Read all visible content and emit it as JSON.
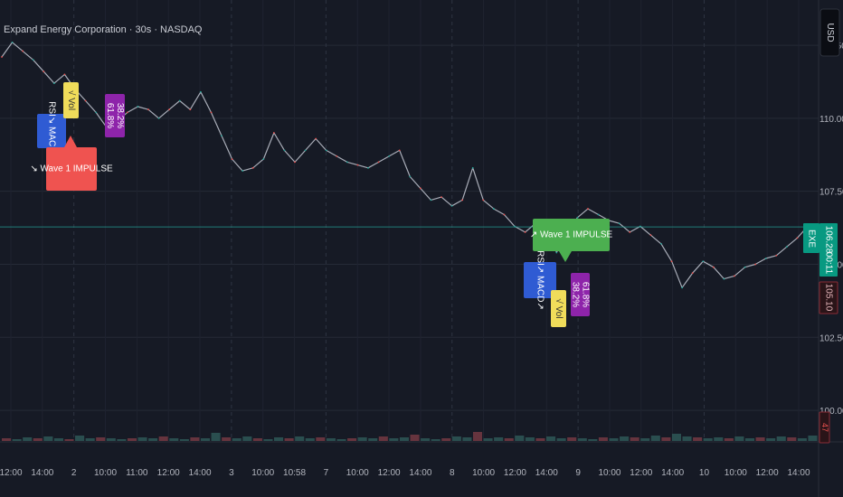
{
  "header": {
    "title": "Expand Energy Corporation · 30s · NASDAQ",
    "currency_button": "USD"
  },
  "chart_data": {
    "type": "line",
    "symbol": "EXE",
    "current_price": "106.28",
    "countdown": "00:11",
    "secondary_price": "105.10",
    "volume_badge": "47",
    "volume_label": "",
    "y_axis": {
      "ticks": [
        100.0,
        102.5,
        105.0,
        107.5,
        110.0,
        112.5
      ],
      "tick_labels": [
        "100.00",
        "102.50",
        "105.00",
        "107.50",
        "110.00",
        "112.50"
      ],
      "ylim": [
        98.95,
        114.05
      ]
    },
    "x_axis": {
      "tick_labels": [
        "12:00",
        "14:00",
        "2",
        "10:00",
        "11:00",
        "12:00",
        "14:00",
        "3",
        "10:00",
        "10:58",
        "7",
        "10:00",
        "12:00",
        "14:00",
        "8",
        "10:00",
        "12:00",
        "14:00",
        "9",
        "10:00",
        "12:00",
        "14:00",
        "10",
        "10:00",
        "12:00",
        "14:00"
      ],
      "day_separators": [
        "2",
        "3",
        "7",
        "8",
        "9",
        "10"
      ]
    },
    "series": [
      {
        "name": "EXE",
        "color": "#a9adb8",
        "values": [
          112.1,
          112.6,
          112.3,
          112.0,
          111.6,
          111.2,
          111.5,
          111.0,
          110.6,
          110.2,
          109.7,
          109.9,
          110.2,
          110.4,
          110.3,
          110.0,
          110.3,
          110.6,
          110.3,
          110.9,
          110.2,
          109.4,
          108.6,
          108.2,
          108.3,
          108.6,
          109.5,
          108.9,
          108.5,
          108.9,
          109.3,
          108.9,
          108.7,
          108.5,
          108.4,
          108.3,
          108.5,
          108.7,
          108.9,
          108.0,
          107.6,
          107.2,
          107.3,
          107.0,
          107.2,
          108.3,
          107.2,
          106.9,
          106.7,
          106.3,
          106.1,
          106.4,
          106.5,
          105.4,
          106.1,
          106.6,
          106.9,
          106.7,
          106.5,
          106.4,
          106.1,
          106.3,
          106.0,
          105.7,
          105.1,
          104.2,
          104.7,
          105.1,
          104.9,
          104.5,
          104.6,
          104.9,
          105.0,
          105.2,
          105.3,
          105.6,
          105.9,
          106.3
        ]
      }
    ],
    "reference_line": {
      "value": 106.28,
      "color": "#26a69a"
    },
    "volume": {
      "values": [
        3,
        2,
        4,
        3,
        5,
        3,
        2,
        6,
        3,
        4,
        3,
        2,
        3,
        4,
        3,
        5,
        3,
        2,
        4,
        3,
        9,
        4,
        3,
        5,
        3,
        2,
        4,
        3,
        5,
        3,
        4,
        3,
        2,
        3,
        4,
        3,
        5,
        3,
        4,
        7,
        3,
        2,
        3,
        5,
        4,
        10,
        3,
        4,
        3,
        6,
        4,
        3,
        5,
        3,
        4,
        3,
        2,
        4,
        3,
        5,
        4,
        3,
        6,
        4,
        8,
        5,
        4,
        3,
        4,
        3,
        5,
        3,
        4,
        3,
        5,
        4,
        3,
        6
      ],
      "ylim": [
        0,
        60
      ]
    },
    "annotations": [
      {
        "text": "RSI↘ MACD↘",
        "color": "#2f5bd3"
      },
      {
        "text": "√ Vol",
        "color": "#f0dc5a"
      },
      {
        "text": "61.8%\n38.2%",
        "color": "#8e24aa"
      },
      {
        "text": "↘ Wave 1 IMPULSE",
        "color": "#ef5350"
      },
      {
        "text": "↗ Wave 1 IMPULSE",
        "color": "#4caf50"
      },
      {
        "text": "RSI↗ MACD↗",
        "color": "#2f5bd3"
      },
      {
        "text": "√ Vol",
        "color": "#f0dc5a"
      },
      {
        "text": "38.2%\n61.8%",
        "color": "#8e24aa"
      }
    ],
    "grid": true,
    "legend": "none"
  }
}
